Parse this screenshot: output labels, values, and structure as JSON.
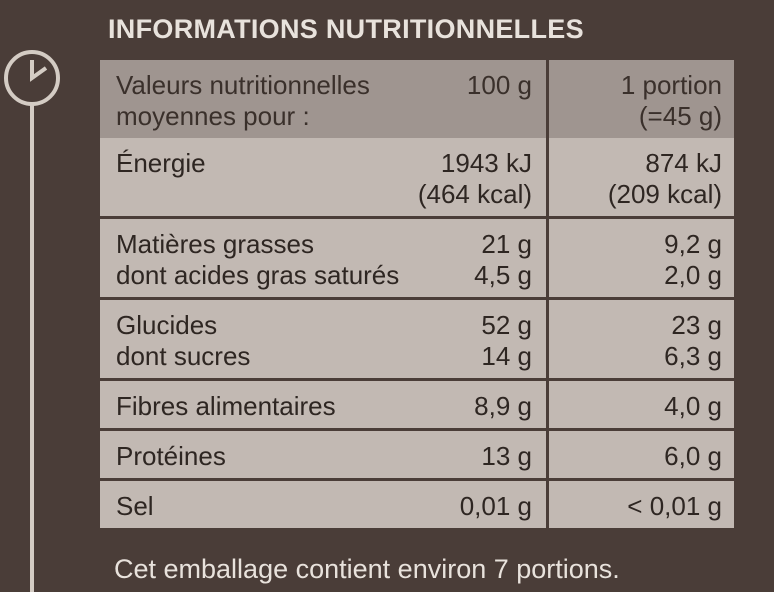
{
  "title": "INFORMATIONS NUTRITIONNELLES",
  "header": {
    "label_line1": "Valeurs nutritionnelles",
    "label_line2": "moyennes pour :",
    "per100": "100 g",
    "portion_line1": "1 portion",
    "portion_line2": "(=45 g)"
  },
  "rows": [
    {
      "labels": [
        "Énergie",
        ""
      ],
      "per100": [
        "1943 kJ",
        "(464 kcal)"
      ],
      "portion": [
        "874 kJ",
        "(209 kcal)"
      ]
    },
    {
      "labels": [
        "Matières grasses",
        "dont acides gras saturés"
      ],
      "per100": [
        "21 g",
        "4,5 g"
      ],
      "portion": [
        "9,2 g",
        "2,0 g"
      ]
    },
    {
      "labels": [
        "Glucides",
        "dont sucres"
      ],
      "per100": [
        "52 g",
        "14 g"
      ],
      "portion": [
        "23 g",
        "6,3 g"
      ]
    },
    {
      "labels": [
        "Fibres alimentaires"
      ],
      "per100": [
        "8,9 g"
      ],
      "portion": [
        "4,0 g"
      ]
    },
    {
      "labels": [
        "Protéines"
      ],
      "per100": [
        "13 g"
      ],
      "portion": [
        "6,0 g"
      ]
    },
    {
      "labels": [
        "Sel"
      ],
      "per100": [
        "0,01 g"
      ],
      "portion": [
        "< 0,01 g"
      ]
    }
  ],
  "footer": "Cet emballage contient environ 7 portions."
}
